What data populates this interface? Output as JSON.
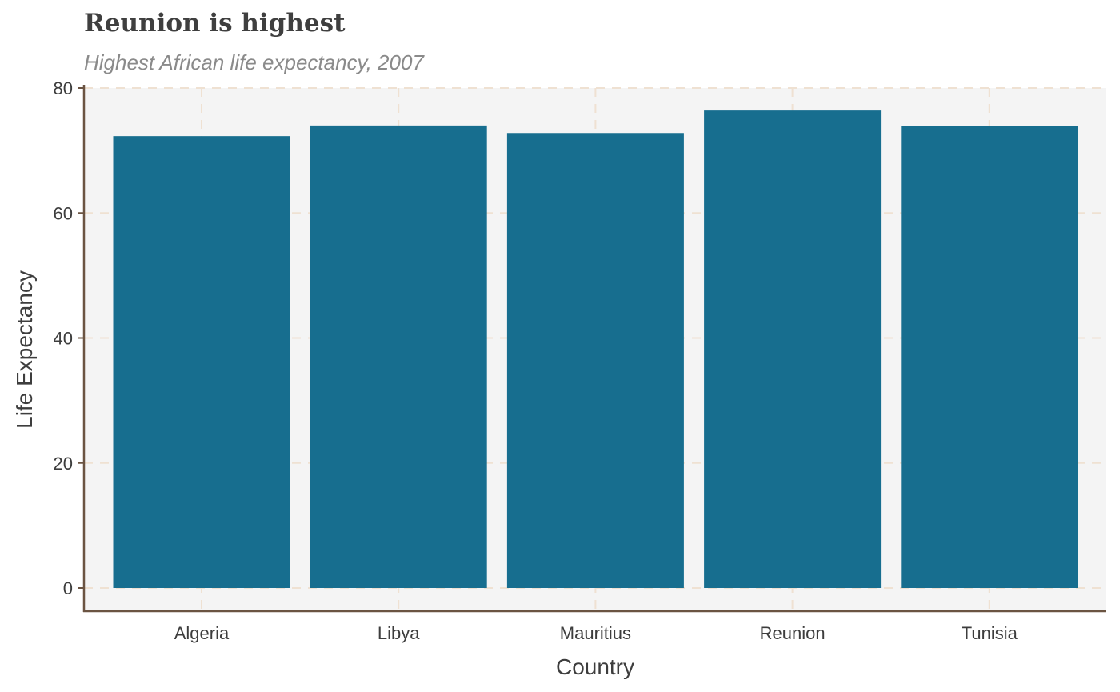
{
  "chart_data": {
    "type": "bar",
    "title": "Reunion is highest",
    "subtitle": "Highest African life expectancy, 2007",
    "xlabel": "Country",
    "ylabel": "Life Expectancy",
    "categories": [
      "Algeria",
      "Libya",
      "Mauritius",
      "Reunion",
      "Tunisia"
    ],
    "values": [
      72.3,
      74.0,
      72.8,
      76.4,
      73.9
    ],
    "ylim": [
      0,
      80
    ],
    "yticks": [
      "0",
      "20",
      "40",
      "60",
      "80"
    ],
    "grid": true,
    "legend": "none",
    "colors": {
      "bar": "#176e8f",
      "panel": "#f4f4f4",
      "grid": "#efe1d2",
      "axis": "#6b5442"
    }
  }
}
